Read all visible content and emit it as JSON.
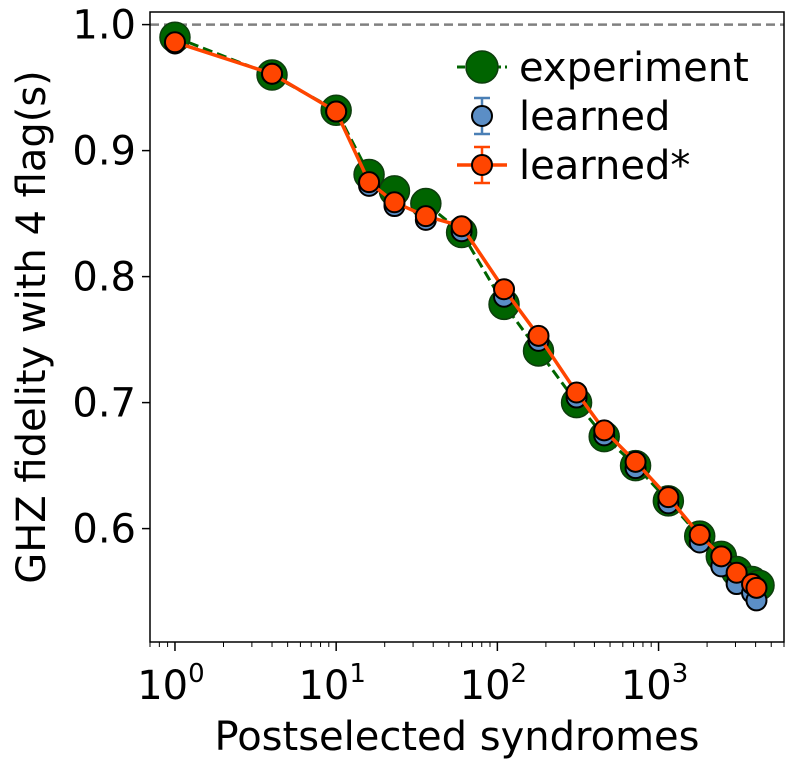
{
  "chart_data": {
    "type": "scatter",
    "title": "",
    "xlabel": "Postselected syndromes",
    "ylabel": "GHZ fidelity with 4 flag(s)",
    "xscale": "log",
    "xlim": [
      0.7,
      6000
    ],
    "ylim": [
      0.51,
      1.01
    ],
    "x_ticks": [
      {
        "value": 1,
        "base": "10",
        "exp": "0"
      },
      {
        "value": 10,
        "base": "10",
        "exp": "1"
      },
      {
        "value": 100,
        "base": "10",
        "exp": "2"
      },
      {
        "value": 1000,
        "base": "10",
        "exp": "3"
      }
    ],
    "y_ticks": [
      {
        "value": 0.6,
        "label": "0.6"
      },
      {
        "value": 0.7,
        "label": "0.7"
      },
      {
        "value": 0.8,
        "label": "0.8"
      },
      {
        "value": 0.9,
        "label": "0.9"
      },
      {
        "value": 1.0,
        "label": "1.0"
      }
    ],
    "reference_line": {
      "y": 1.0,
      "style": "dashed",
      "color": "#808080"
    },
    "grid": false,
    "legend_position": "top-right",
    "series": [
      {
        "name": "experiment",
        "style": "dashed-line-large-markers",
        "color": "#006400",
        "x": [
          1,
          4,
          10,
          16,
          23,
          36,
          60,
          110,
          180,
          310,
          460,
          720,
          1150,
          1800,
          2450,
          3050,
          3800,
          4200
        ],
        "y": [
          0.99,
          0.96,
          0.932,
          0.881,
          0.868,
          0.858,
          0.835,
          0.778,
          0.741,
          0.7,
          0.673,
          0.65,
          0.622,
          0.594,
          0.578,
          0.566,
          0.558,
          0.555
        ]
      },
      {
        "name": "learned",
        "style": "markers-with-errorbars",
        "color": "#5b8ec6",
        "x": [
          1,
          4,
          10,
          16,
          23,
          36,
          60,
          110,
          180,
          310,
          460,
          720,
          1150,
          1800,
          2450,
          3050,
          3800,
          4050
        ],
        "y": [
          0.985,
          0.961,
          0.931,
          0.872,
          0.856,
          0.845,
          0.836,
          0.784,
          0.749,
          0.704,
          0.674,
          0.648,
          0.62,
          0.589,
          0.57,
          0.556,
          0.549,
          0.543
        ],
        "err": [
          0.002,
          0.002,
          0.002,
          0.003,
          0.003,
          0.003,
          0.003,
          0.003,
          0.003,
          0.003,
          0.004,
          0.004,
          0.005,
          0.005,
          0.006,
          0.006,
          0.006,
          0.007
        ]
      },
      {
        "name": "learned*",
        "style": "line-markers-with-errorbars",
        "color": "#ff4500",
        "x": [
          1,
          4,
          10,
          16,
          23,
          36,
          60,
          110,
          180,
          310,
          460,
          720,
          1150,
          1800,
          2450,
          3050,
          3800,
          4050
        ],
        "y": [
          0.986,
          0.961,
          0.931,
          0.875,
          0.859,
          0.848,
          0.84,
          0.79,
          0.753,
          0.708,
          0.678,
          0.653,
          0.625,
          0.595,
          0.578,
          0.565,
          0.556,
          0.553
        ],
        "err": [
          0.002,
          0.002,
          0.002,
          0.003,
          0.003,
          0.003,
          0.003,
          0.003,
          0.003,
          0.003,
          0.004,
          0.004,
          0.005,
          0.005,
          0.006,
          0.006,
          0.006,
          0.007
        ]
      }
    ]
  }
}
